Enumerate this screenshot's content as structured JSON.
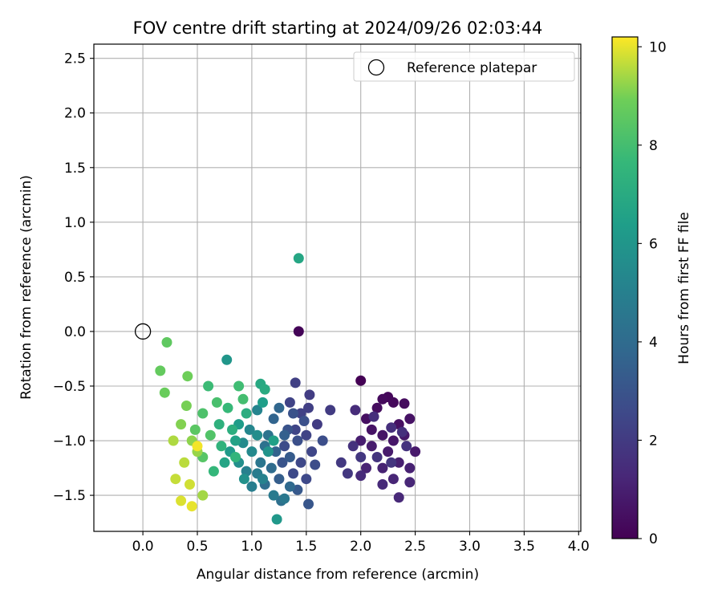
{
  "chart_data": {
    "type": "scatter",
    "title": "FOV centre drift starting at 2024/09/26 02:03:44",
    "xlabel": "Angular distance from reference (arcmin)",
    "ylabel": "Rotation from reference (arcmin)",
    "xlim": [
      -0.45,
      4.02
    ],
    "ylim": [
      -1.83,
      2.63
    ],
    "x_ticks": [
      "0.0",
      "0.5",
      "1.0",
      "1.5",
      "2.0",
      "2.5",
      "3.0",
      "3.5",
      "4.0"
    ],
    "y_ticks": [
      "−1.5",
      "−1.0",
      "−0.5",
      "0.0",
      "0.5",
      "1.0",
      "1.5",
      "2.0",
      "2.5"
    ],
    "grid": true,
    "legend": {
      "position": "top-right",
      "entries": [
        {
          "label": "Reference platepar",
          "marker": "open-circle"
        }
      ]
    },
    "colorbar": {
      "label": "Hours from first FF file",
      "colormap": "viridis",
      "range": [
        0,
        10.2
      ],
      "ticks": [
        "0",
        "2",
        "4",
        "6",
        "8",
        "10"
      ]
    },
    "reference_point": {
      "x": 0.0,
      "y": 0.0
    },
    "series": [
      {
        "values_format": "[x, y, hours]",
        "points": [
          [
            2.0,
            -0.45,
            0.0
          ],
          [
            1.43,
            0.0,
            0.1
          ],
          [
            2.25,
            -0.6,
            0.2
          ],
          [
            2.3,
            -0.65,
            0.25
          ],
          [
            2.2,
            -0.62,
            0.3
          ],
          [
            2.4,
            -0.66,
            0.35
          ],
          [
            2.15,
            -0.7,
            0.4
          ],
          [
            2.05,
            -0.8,
            0.45
          ],
          [
            2.35,
            -0.85,
            0.5
          ],
          [
            2.45,
            -0.8,
            0.55
          ],
          [
            2.1,
            -0.9,
            0.6
          ],
          [
            2.2,
            -0.95,
            0.65
          ],
          [
            2.3,
            -1.0,
            0.7
          ],
          [
            2.4,
            -0.95,
            0.75
          ],
          [
            2.5,
            -1.1,
            0.8
          ],
          [
            2.25,
            -1.1,
            0.85
          ],
          [
            2.1,
            -1.05,
            0.9
          ],
          [
            2.0,
            -1.0,
            0.95
          ],
          [
            2.35,
            -1.2,
            1.0
          ],
          [
            2.45,
            -1.25,
            1.05
          ],
          [
            2.2,
            -1.25,
            1.1
          ],
          [
            2.05,
            -1.25,
            1.15
          ],
          [
            2.3,
            -1.35,
            1.2
          ],
          [
            2.45,
            -1.38,
            1.25
          ],
          [
            2.35,
            -1.52,
            1.3
          ],
          [
            2.2,
            -1.4,
            1.35
          ],
          [
            2.0,
            -1.32,
            1.4
          ],
          [
            1.95,
            -0.72,
            1.45
          ],
          [
            2.12,
            -0.78,
            1.5
          ],
          [
            2.28,
            -0.88,
            1.55
          ],
          [
            2.38,
            -0.92,
            1.6
          ],
          [
            1.93,
            -1.05,
            1.65
          ],
          [
            2.42,
            -1.05,
            1.7
          ],
          [
            2.15,
            -1.15,
            1.75
          ],
          [
            2.28,
            -1.2,
            1.8
          ],
          [
            2.0,
            -1.15,
            1.85
          ],
          [
            1.88,
            -1.3,
            1.9
          ],
          [
            1.82,
            -1.2,
            1.95
          ],
          [
            1.72,
            -0.72,
            2.0
          ],
          [
            1.6,
            -0.85,
            2.05
          ],
          [
            1.53,
            -0.58,
            2.1
          ],
          [
            1.52,
            -0.7,
            2.15
          ],
          [
            1.4,
            -0.47,
            2.2
          ],
          [
            1.45,
            -0.75,
            2.25
          ],
          [
            1.35,
            -0.65,
            2.3
          ],
          [
            1.5,
            -0.95,
            2.35
          ],
          [
            1.4,
            -0.9,
            2.4
          ],
          [
            1.55,
            -1.1,
            2.45
          ],
          [
            1.45,
            -1.2,
            2.5
          ],
          [
            1.5,
            -1.35,
            2.55
          ],
          [
            1.38,
            -1.3,
            2.6
          ],
          [
            1.3,
            -1.05,
            2.65
          ],
          [
            1.58,
            -1.22,
            2.7
          ],
          [
            1.65,
            -1.0,
            2.75
          ],
          [
            1.42,
            -1.0,
            2.8
          ],
          [
            1.48,
            -0.82,
            2.85
          ],
          [
            1.38,
            -0.75,
            2.9
          ],
          [
            1.33,
            -0.9,
            2.95
          ],
          [
            1.28,
            -1.2,
            3.0
          ],
          [
            1.52,
            -1.58,
            3.1
          ],
          [
            1.42,
            -1.45,
            3.2
          ],
          [
            1.35,
            -1.15,
            3.3
          ],
          [
            1.25,
            -1.35,
            3.4
          ],
          [
            1.3,
            -0.95,
            3.5
          ],
          [
            1.22,
            -1.1,
            3.6
          ],
          [
            1.2,
            -0.8,
            3.7
          ],
          [
            1.25,
            -0.7,
            3.8
          ],
          [
            1.35,
            -1.42,
            3.9
          ],
          [
            1.18,
            -1.25,
            4.0
          ],
          [
            1.12,
            -1.4,
            4.1
          ],
          [
            1.27,
            -1.55,
            4.2
          ],
          [
            1.12,
            -1.05,
            4.3
          ],
          [
            1.15,
            -0.95,
            4.4
          ],
          [
            1.08,
            -1.2,
            4.5
          ],
          [
            1.3,
            -1.53,
            4.6
          ],
          [
            1.2,
            -1.5,
            4.7
          ],
          [
            1.05,
            -1.3,
            4.8
          ],
          [
            1.0,
            -1.42,
            4.9
          ],
          [
            0.95,
            -1.28,
            5.0
          ],
          [
            1.1,
            -1.35,
            5.1
          ],
          [
            1.05,
            -0.72,
            5.2
          ],
          [
            0.98,
            -0.9,
            5.3
          ],
          [
            1.0,
            -1.1,
            5.4
          ],
          [
            0.92,
            -1.02,
            5.5
          ],
          [
            1.05,
            -0.95,
            5.6
          ],
          [
            0.88,
            -1.2,
            5.7
          ],
          [
            0.93,
            -1.35,
            5.8
          ],
          [
            1.15,
            -1.1,
            5.9
          ],
          [
            0.77,
            -0.26,
            6.0
          ],
          [
            1.23,
            -1.72,
            6.1
          ],
          [
            0.8,
            -1.1,
            6.2
          ],
          [
            0.88,
            -0.85,
            6.3
          ],
          [
            1.1,
            -0.65,
            6.4
          ],
          [
            1.2,
            -1.0,
            6.5
          ],
          [
            0.85,
            -1.0,
            6.6
          ],
          [
            0.75,
            -1.2,
            6.7
          ],
          [
            1.43,
            0.67,
            6.8
          ],
          [
            1.08,
            -0.48,
            6.9
          ],
          [
            1.12,
            -0.53,
            7.0
          ],
          [
            0.95,
            -0.75,
            7.1
          ],
          [
            0.82,
            -0.9,
            7.2
          ],
          [
            0.7,
            -0.85,
            7.3
          ],
          [
            0.72,
            -1.05,
            7.4
          ],
          [
            0.85,
            -1.15,
            7.5
          ],
          [
            0.65,
            -1.28,
            7.6
          ],
          [
            0.78,
            -0.7,
            7.7
          ],
          [
            0.6,
            -0.5,
            7.8
          ],
          [
            0.88,
            -0.5,
            7.9
          ],
          [
            0.92,
            -0.62,
            8.0
          ],
          [
            0.68,
            -0.65,
            8.1
          ],
          [
            0.55,
            -0.75,
            8.2
          ],
          [
            0.62,
            -0.95,
            8.3
          ],
          [
            0.55,
            -1.15,
            8.4
          ],
          [
            0.48,
            -0.9,
            8.5
          ],
          [
            0.22,
            -0.1,
            8.6
          ],
          [
            0.16,
            -0.36,
            8.7
          ],
          [
            0.2,
            -0.56,
            8.8
          ],
          [
            0.41,
            -0.41,
            8.9
          ],
          [
            0.4,
            -0.68,
            9.0
          ],
          [
            0.35,
            -0.85,
            9.1
          ],
          [
            0.45,
            -1.0,
            9.2
          ],
          [
            0.5,
            -1.1,
            9.3
          ],
          [
            0.55,
            -1.5,
            9.4
          ],
          [
            0.28,
            -1.0,
            9.5
          ],
          [
            0.38,
            -1.2,
            9.6
          ],
          [
            0.3,
            -1.35,
            9.7
          ],
          [
            0.43,
            -1.4,
            9.8
          ],
          [
            0.35,
            -1.55,
            9.9
          ],
          [
            0.45,
            -1.6,
            10.0
          ],
          [
            0.5,
            -1.05,
            10.1
          ]
        ]
      }
    ]
  }
}
